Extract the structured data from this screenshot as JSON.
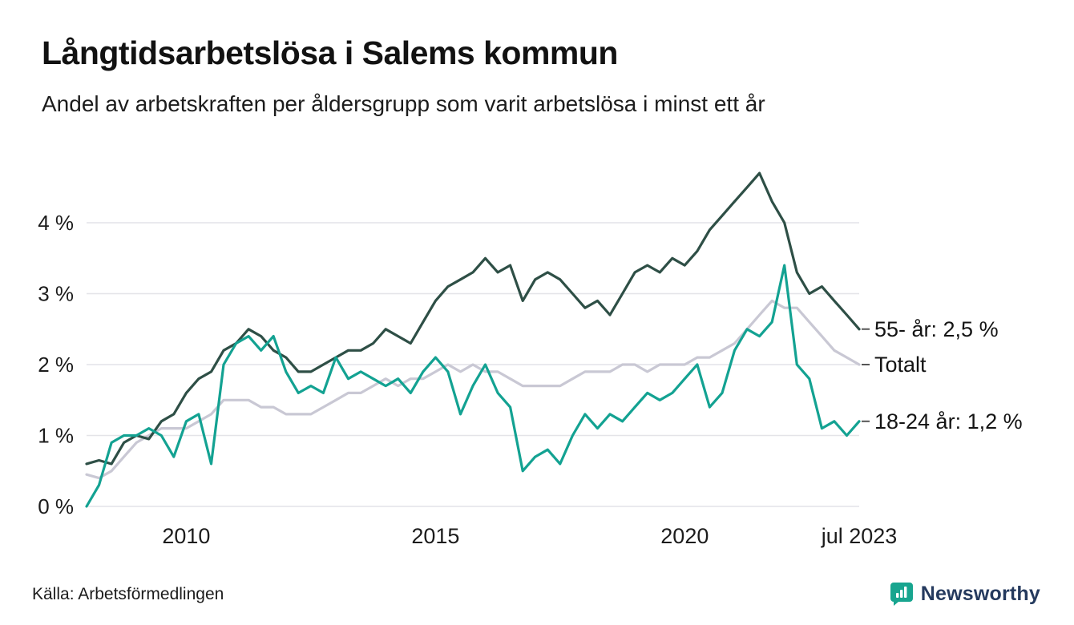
{
  "header": {
    "title": "Långtidsarbetslösa i Salems kommun",
    "subtitle": "Andel av arbetskraften per åldersgrupp som varit arbetslösa i minst ett år"
  },
  "footer": {
    "source": "Källa: Arbetsförmedlingen",
    "brand": "Newsworthy"
  },
  "colors": {
    "series_55": "#2e4f46",
    "series_total": "#c9c8d4",
    "series_1824": "#13a292",
    "grid": "#e4e4e8",
    "axis_text": "#1c1c1c",
    "brand_teal": "#18a58f",
    "brand_text": "#253a5e"
  },
  "chart_data": {
    "type": "line",
    "title": "Långtidsarbetslösa i Salems kommun",
    "subtitle": "Andel av arbetskraften per åldersgrupp som varit arbetslösa i minst ett år",
    "xlabel": "",
    "ylabel": "",
    "x_start": 2008,
    "x_step": 0.25,
    "xlim": [
      2007.85,
      2023.6
    ],
    "ylim": [
      0,
      4.85
    ],
    "grid": true,
    "legend_position": "right-end-labels",
    "y_ticks": [
      {
        "value": 0,
        "label": "0 %"
      },
      {
        "value": 1,
        "label": "1 %"
      },
      {
        "value": 2,
        "label": "2 %"
      },
      {
        "value": 3,
        "label": "3 %"
      },
      {
        "value": 4,
        "label": "4 %"
      }
    ],
    "x_ticks": [
      {
        "value": 2010,
        "label": "2010"
      },
      {
        "value": 2015,
        "label": "2015"
      },
      {
        "value": 2020,
        "label": "2020"
      },
      {
        "value": 2023.5,
        "label": "jul 2023"
      }
    ],
    "series": [
      {
        "name": "Totalt",
        "color": "#c9c8d4",
        "end_label": "Totalt",
        "end_value": "2,0 %",
        "values": [
          0.45,
          0.4,
          0.5,
          0.7,
          0.9,
          1.0,
          1.1,
          1.1,
          1.1,
          1.2,
          1.3,
          1.5,
          1.5,
          1.5,
          1.4,
          1.4,
          1.3,
          1.3,
          1.3,
          1.4,
          1.5,
          1.6,
          1.6,
          1.7,
          1.8,
          1.7,
          1.8,
          1.8,
          1.9,
          2.0,
          1.9,
          2.0,
          1.9,
          1.9,
          1.8,
          1.7,
          1.7,
          1.7,
          1.7,
          1.8,
          1.9,
          1.9,
          1.9,
          2.0,
          2.0,
          1.9,
          2.0,
          2.0,
          2.0,
          2.1,
          2.1,
          2.2,
          2.3,
          2.5,
          2.7,
          2.9,
          2.8,
          2.8,
          2.6,
          2.4,
          2.2,
          2.1,
          2.0
        ]
      },
      {
        "name": "55- år",
        "color": "#2e4f46",
        "end_label": "55- år: 2,5 %",
        "end_value": "2,5 %",
        "values": [
          0.6,
          0.65,
          0.6,
          0.9,
          1.0,
          0.95,
          1.2,
          1.3,
          1.6,
          1.8,
          1.9,
          2.2,
          2.3,
          2.5,
          2.4,
          2.2,
          2.1,
          1.9,
          1.9,
          2.0,
          2.1,
          2.2,
          2.2,
          2.3,
          2.5,
          2.4,
          2.3,
          2.6,
          2.9,
          3.1,
          3.2,
          3.3,
          3.5,
          3.3,
          3.4,
          2.9,
          3.2,
          3.3,
          3.2,
          3.0,
          2.8,
          2.9,
          2.7,
          3.0,
          3.3,
          3.4,
          3.3,
          3.5,
          3.4,
          3.6,
          3.9,
          4.1,
          4.3,
          4.5,
          4.7,
          4.3,
          4.0,
          3.3,
          3.0,
          3.1,
          2.9,
          2.7,
          2.5
        ]
      },
      {
        "name": "18-24 år",
        "color": "#13a292",
        "end_label": "18-24 år: 1,2 %",
        "end_value": "1,2 %",
        "values": [
          0.0,
          0.3,
          0.9,
          1.0,
          1.0,
          1.1,
          1.0,
          0.7,
          1.2,
          1.3,
          0.6,
          2.0,
          2.3,
          2.4,
          2.2,
          2.4,
          1.9,
          1.6,
          1.7,
          1.6,
          2.1,
          1.8,
          1.9,
          1.8,
          1.7,
          1.8,
          1.6,
          1.9,
          2.1,
          1.9,
          1.3,
          1.7,
          2.0,
          1.6,
          1.4,
          0.5,
          0.7,
          0.8,
          0.6,
          1.0,
          1.3,
          1.1,
          1.3,
          1.2,
          1.4,
          1.6,
          1.5,
          1.6,
          1.8,
          2.0,
          1.4,
          1.6,
          2.2,
          2.5,
          2.4,
          2.6,
          3.4,
          2.0,
          1.8,
          1.1,
          1.2,
          1.0,
          1.2
        ]
      }
    ]
  }
}
